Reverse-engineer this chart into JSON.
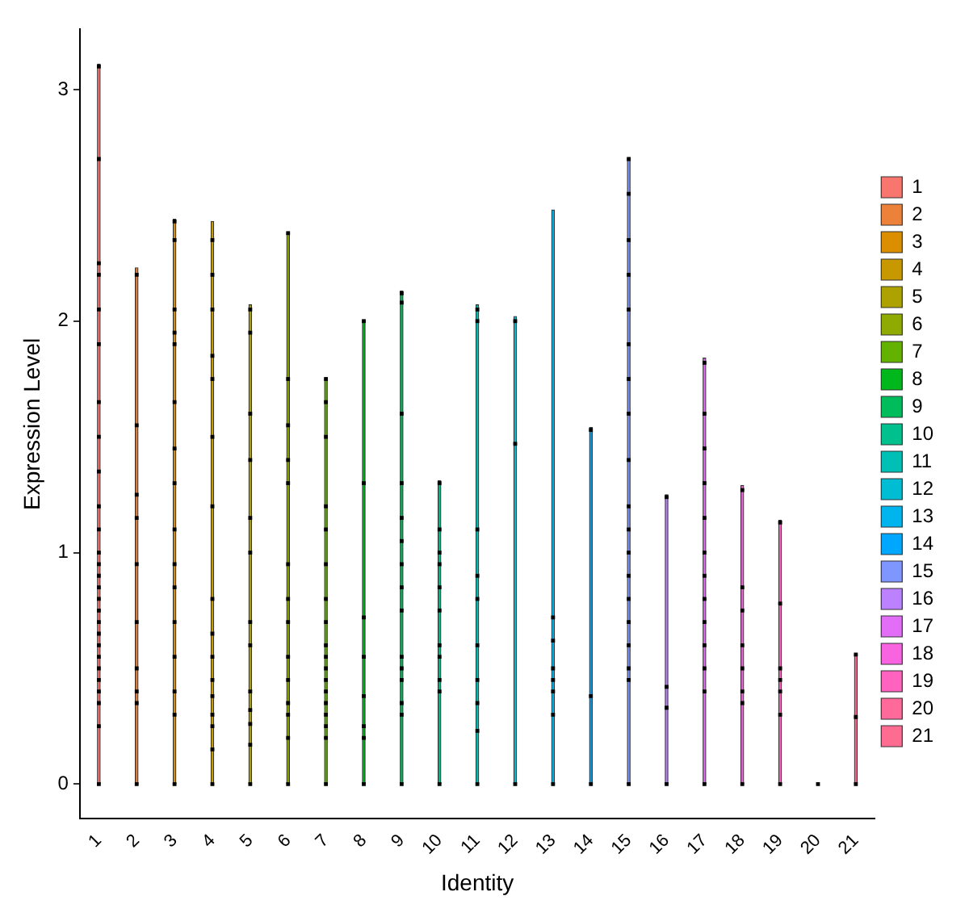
{
  "chart_data": {
    "type": "scatter",
    "xlabel": "Identity",
    "ylabel": "Expression Level",
    "categories": [
      "1",
      "2",
      "3",
      "4",
      "5",
      "6",
      "7",
      "8",
      "9",
      "10",
      "11",
      "12",
      "13",
      "14",
      "15",
      "16",
      "17",
      "18",
      "19",
      "20",
      "21"
    ],
    "ylim": [
      -0.15,
      3.26
    ],
    "yticks": [
      0,
      1,
      2,
      3
    ],
    "grid": false,
    "legend": "right",
    "marker": "square",
    "series": [
      {
        "type": "bar",
        "name": "1",
        "color": "#f8766d",
        "values": [
          3.11,
          null,
          null,
          null,
          null,
          null,
          null,
          null,
          null,
          null,
          null,
          null,
          null,
          null,
          null,
          null,
          null,
          null,
          null,
          null,
          null
        ]
      },
      {
        "type": "bar",
        "name": "2",
        "color": "#ec8239",
        "values": [
          null,
          2.23,
          null,
          null,
          null,
          null,
          null,
          null,
          null,
          null,
          null,
          null,
          null,
          null,
          null,
          null,
          null,
          null,
          null,
          null,
          null
        ]
      },
      {
        "type": "bar",
        "name": "3",
        "color": "#db8e00",
        "values": [
          null,
          null,
          2.44,
          null,
          null,
          null,
          null,
          null,
          null,
          null,
          null,
          null,
          null,
          null,
          null,
          null,
          null,
          null,
          null,
          null,
          null
        ]
      },
      {
        "type": "bar",
        "name": "4",
        "color": "#c79800",
        "values": [
          null,
          null,
          null,
          2.43,
          null,
          null,
          null,
          null,
          null,
          null,
          null,
          null,
          null,
          null,
          null,
          null,
          null,
          null,
          null,
          null,
          null
        ]
      },
      {
        "type": "bar",
        "name": "5",
        "color": "#aea200",
        "values": [
          null,
          null,
          null,
          null,
          2.07,
          null,
          null,
          null,
          null,
          null,
          null,
          null,
          null,
          null,
          null,
          null,
          null,
          null,
          null,
          null,
          null
        ]
      },
      {
        "type": "bar",
        "name": "6",
        "color": "#8faa00",
        "values": [
          null,
          null,
          null,
          null,
          null,
          2.38,
          null,
          null,
          null,
          null,
          null,
          null,
          null,
          null,
          null,
          null,
          null,
          null,
          null,
          null,
          null
        ]
      },
      {
        "type": "bar",
        "name": "7",
        "color": "#64b200",
        "values": [
          null,
          null,
          null,
          null,
          null,
          null,
          1.75,
          null,
          null,
          null,
          null,
          null,
          null,
          null,
          null,
          null,
          null,
          null,
          null,
          null,
          null
        ]
      },
      {
        "type": "bar",
        "name": "8",
        "color": "#00b81b",
        "values": [
          null,
          null,
          null,
          null,
          null,
          null,
          null,
          2.0,
          null,
          null,
          null,
          null,
          null,
          null,
          null,
          null,
          null,
          null,
          null,
          null,
          null
        ]
      },
      {
        "type": "bar",
        "name": "9",
        "color": "#00bd5c",
        "values": [
          null,
          null,
          null,
          null,
          null,
          null,
          null,
          null,
          2.13,
          null,
          null,
          null,
          null,
          null,
          null,
          null,
          null,
          null,
          null,
          null,
          null
        ]
      },
      {
        "type": "bar",
        "name": "10",
        "color": "#00c08e",
        "values": [
          null,
          null,
          null,
          null,
          null,
          null,
          null,
          null,
          null,
          1.31,
          null,
          null,
          null,
          null,
          null,
          null,
          null,
          null,
          null,
          null,
          null
        ]
      },
      {
        "type": "bar",
        "name": "11",
        "color": "#00c0b5",
        "values": [
          null,
          null,
          null,
          null,
          null,
          null,
          null,
          null,
          null,
          null,
          2.07,
          null,
          null,
          null,
          null,
          null,
          null,
          null,
          null,
          null,
          null
        ]
      },
      {
        "type": "bar",
        "name": "12",
        "color": "#00bdd4",
        "values": [
          null,
          null,
          null,
          null,
          null,
          null,
          null,
          null,
          null,
          null,
          null,
          2.02,
          null,
          null,
          null,
          null,
          null,
          null,
          null,
          null,
          null
        ]
      },
      {
        "type": "bar",
        "name": "13",
        "color": "#00b5ee",
        "values": [
          null,
          null,
          null,
          null,
          null,
          null,
          null,
          null,
          null,
          null,
          null,
          null,
          2.48,
          null,
          null,
          null,
          null,
          null,
          null,
          null,
          null
        ]
      },
      {
        "type": "bar",
        "name": "14",
        "color": "#00a7ff",
        "values": [
          null,
          null,
          null,
          null,
          null,
          null,
          null,
          null,
          null,
          null,
          null,
          null,
          null,
          1.54,
          null,
          null,
          null,
          null,
          null,
          null,
          null
        ]
      },
      {
        "type": "bar",
        "name": "15",
        "color": "#7f96ff",
        "values": [
          null,
          null,
          null,
          null,
          null,
          null,
          null,
          null,
          null,
          null,
          null,
          null,
          null,
          null,
          2.7,
          null,
          null,
          null,
          null,
          null,
          null
        ]
      },
      {
        "type": "bar",
        "name": "16",
        "color": "#bc81ff",
        "values": [
          null,
          null,
          null,
          null,
          null,
          null,
          null,
          null,
          null,
          null,
          null,
          null,
          null,
          null,
          null,
          1.25,
          null,
          null,
          null,
          null,
          null
        ]
      },
      {
        "type": "bar",
        "name": "17",
        "color": "#e26ef7",
        "values": [
          null,
          null,
          null,
          null,
          null,
          null,
          null,
          null,
          null,
          null,
          null,
          null,
          null,
          null,
          null,
          null,
          1.84,
          null,
          null,
          null,
          null
        ]
      },
      {
        "type": "bar",
        "name": "18",
        "color": "#f863df",
        "values": [
          null,
          null,
          null,
          null,
          null,
          null,
          null,
          null,
          null,
          null,
          null,
          null,
          null,
          null,
          null,
          null,
          null,
          1.29,
          null,
          null,
          null
        ]
      },
      {
        "type": "bar",
        "name": "19",
        "color": "#ff62bf",
        "values": [
          null,
          null,
          null,
          null,
          null,
          null,
          null,
          null,
          null,
          null,
          null,
          null,
          null,
          null,
          null,
          null,
          null,
          null,
          1.14,
          null,
          null
        ]
      },
      {
        "type": "bar",
        "name": "20",
        "color": "#ff6a9a",
        "values": [
          null,
          null,
          null,
          null,
          null,
          null,
          null,
          null,
          null,
          null,
          null,
          null,
          null,
          null,
          null,
          null,
          null,
          null,
          null,
          null,
          null
        ]
      },
      {
        "type": "bar",
        "name": "21",
        "color": "#ff6c91",
        "values": [
          null,
          null,
          null,
          null,
          null,
          null,
          null,
          null,
          null,
          null,
          null,
          null,
          null,
          null,
          null,
          null,
          null,
          null,
          null,
          null,
          0.56
        ]
      },
      {
        "color": "#000000",
        "x": [
          "1",
          "1",
          "1",
          "1",
          "1",
          "1",
          "1",
          "1",
          "1",
          "1",
          "1",
          "1",
          "1",
          "1",
          "1",
          "1",
          "1",
          "1",
          "1",
          "1",
          "1",
          "1",
          "1",
          "1",
          "1",
          "1",
          "1",
          "2",
          "2",
          "2",
          "2",
          "2",
          "2",
          "2",
          "2",
          "2",
          "2",
          "3",
          "3",
          "3",
          "3",
          "3",
          "3",
          "3",
          "3",
          "3",
          "3",
          "3",
          "3",
          "3",
          "3",
          "3",
          "3",
          "4",
          "4",
          "4",
          "4",
          "4",
          "4",
          "4",
          "4",
          "4",
          "4",
          "4",
          "4",
          "4",
          "4",
          "4",
          "4",
          "5",
          "5",
          "5",
          "5",
          "5",
          "5",
          "5",
          "5",
          "5",
          "5",
          "5",
          "5",
          "5",
          "6",
          "6",
          "6",
          "6",
          "6",
          "6",
          "6",
          "6",
          "6",
          "6",
          "6",
          "6",
          "6",
          "6",
          "7",
          "7",
          "7",
          "7",
          "7",
          "7",
          "7",
          "7",
          "7",
          "7",
          "7",
          "7",
          "7",
          "7",
          "7",
          "7",
          "7",
          "7",
          "8",
          "8",
          "8",
          "8",
          "8",
          "8",
          "8",
          "8",
          "9",
          "9",
          "9",
          "9",
          "9",
          "9",
          "9",
          "9",
          "9",
          "9",
          "9",
          "9",
          "9",
          "9",
          "9",
          "10",
          "10",
          "10",
          "10",
          "10",
          "10",
          "10",
          "10",
          "10",
          "10",
          "10",
          "11",
          "11",
          "11",
          "11",
          "11",
          "11",
          "11",
          "11",
          "11",
          "11",
          "12",
          "12",
          "12",
          "13",
          "13",
          "13",
          "13",
          "13",
          "13",
          "13",
          "14",
          "14",
          "14",
          "15",
          "15",
          "15",
          "15",
          "15",
          "15",
          "15",
          "15",
          "15",
          "15",
          "15",
          "15",
          "15",
          "15",
          "15",
          "15",
          "15",
          "15",
          "15",
          "16",
          "16",
          "16",
          "16",
          "17",
          "17",
          "17",
          "17",
          "17",
          "17",
          "17",
          "17",
          "17",
          "17",
          "17",
          "17",
          "17",
          "18",
          "18",
          "18",
          "18",
          "18",
          "18",
          "18",
          "18",
          "19",
          "19",
          "19",
          "19",
          "19",
          "19",
          "19",
          "20",
          "21",
          "21",
          "21"
        ],
        "values": [
          0,
          3.1,
          2.7,
          2.25,
          2.2,
          2.05,
          1.9,
          1.65,
          1.5,
          1.35,
          1.2,
          1.1,
          1.0,
          0.95,
          0.9,
          0.85,
          0.8,
          0.75,
          0.7,
          0.65,
          0.6,
          0.55,
          0.5,
          0.45,
          0.4,
          0.35,
          0.25,
          0,
          2.2,
          1.55,
          1.25,
          1.15,
          0.95,
          0.7,
          0.5,
          0.4,
          0.35,
          0,
          2.43,
          2.35,
          2.05,
          1.95,
          1.9,
          1.65,
          1.45,
          1.3,
          1.1,
          0.95,
          0.85,
          0.7,
          0.55,
          0.4,
          0.3,
          0,
          2.35,
          2.2,
          2.05,
          1.85,
          1.75,
          1.5,
          1.2,
          0.8,
          0.65,
          0.55,
          0.45,
          0.38,
          0.3,
          0.25,
          0.15,
          0,
          2.05,
          1.95,
          1.6,
          1.4,
          1.15,
          1.0,
          0.7,
          0.6,
          0.4,
          0.32,
          0.26,
          0.17,
          0,
          2.38,
          1.75,
          1.55,
          1.4,
          1.3,
          0.95,
          0.8,
          0.7,
          0.55,
          0.45,
          0.35,
          0.3,
          0.2,
          0,
          1.75,
          1.65,
          1.5,
          1.2,
          1.1,
          0.95,
          0.8,
          0.7,
          0.6,
          0.55,
          0.5,
          0.45,
          0.4,
          0.35,
          0.3,
          0.25,
          0.2,
          0,
          2.0,
          1.3,
          0.72,
          0.55,
          0.38,
          0.25,
          0.2,
          0,
          2.12,
          2.08,
          1.6,
          1.3,
          1.15,
          1.05,
          0.95,
          0.85,
          0.75,
          0.55,
          0.5,
          0.45,
          0.35,
          0.3,
          0,
          1.3,
          1.1,
          1.0,
          0.95,
          0.85,
          0.75,
          0.6,
          0.55,
          0.45,
          0.4,
          0,
          2.05,
          2.0,
          1.1,
          0.9,
          0.8,
          0.6,
          0.45,
          0.35,
          0.23,
          0,
          2.0,
          1.47,
          0,
          0.72,
          0.62,
          0.5,
          0.45,
          0.4,
          0.3,
          0,
          1.53,
          0.38,
          0,
          2.7,
          2.55,
          2.35,
          2.2,
          2.05,
          1.9,
          1.75,
          1.6,
          1.4,
          1.2,
          1.1,
          1.0,
          0.9,
          0.8,
          0.7,
          0.6,
          0.5,
          0.45,
          0,
          1.24,
          0.42,
          0.33,
          0,
          1.82,
          1.6,
          1.45,
          1.3,
          1.15,
          1.0,
          0.9,
          0.8,
          0.7,
          0.6,
          0.5,
          0.4,
          0,
          1.27,
          0.85,
          0.75,
          0.6,
          0.5,
          0.4,
          0.35,
          0,
          1.13,
          0.78,
          0.5,
          0.45,
          0.4,
          0.3,
          0,
          0.56,
          0.29,
          0
        ]
      }
    ]
  }
}
